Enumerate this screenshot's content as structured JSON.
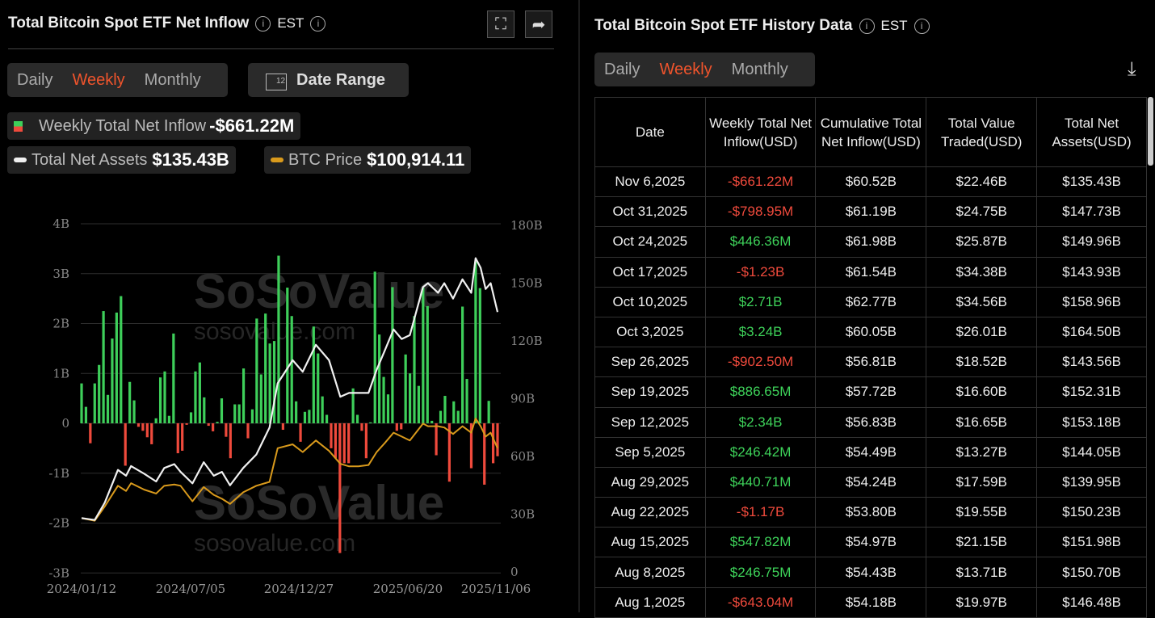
{
  "left": {
    "title": "Total Bitcoin Spot ETF Net Inflow",
    "tz": "EST",
    "periods": [
      "Daily",
      "Weekly",
      "Monthly"
    ],
    "active_period": "Weekly",
    "date_range_label": "Date Range",
    "calendar_day": "12",
    "legend": {
      "inflow_label": "Weekly Total Net Inflow",
      "inflow_value": "-$661.22M",
      "assets_label": "Total Net Assets",
      "assets_value": "$135.43B",
      "btc_label": "BTC Price",
      "btc_value": "$100,914.11"
    }
  },
  "watermark": {
    "brand": "SoSoValue",
    "url": "sosovalue.com"
  },
  "chart_data": {
    "type": "bar+line",
    "colors": {
      "positive": "#3ecf5a",
      "negative": "#ef4a3c",
      "total_net_assets": "#f0f0f0",
      "btc_price": "#d99a1c"
    },
    "x_ticks": [
      "2024/01/12",
      "2024/07/05",
      "2024/12/27",
      "2025/06/20",
      "2025/11/06"
    ],
    "x_range": [
      "2024-01-12",
      "2025-11-06"
    ],
    "left_axis": {
      "ticks": [
        "4B",
        "3B",
        "2B",
        "1B",
        "0",
        "-1B",
        "-2B",
        "-3B"
      ],
      "range": [
        -3,
        4
      ],
      "unit": "B"
    },
    "right_axis": {
      "ticks": [
        "180B",
        "150B",
        "120B",
        "90B",
        "60B",
        "30B",
        "0"
      ],
      "range": [
        0,
        180
      ],
      "unit": "B"
    },
    "grid": true,
    "weekly_net_inflow_B": [
      0.8,
      0.33,
      -0.4,
      0.8,
      1.17,
      2.25,
      0.57,
      1.7,
      2.22,
      2.55,
      -0.85,
      0.83,
      0.46,
      -0.07,
      -0.15,
      -0.28,
      -0.42,
      0.1,
      0.92,
      1.04,
      0.15,
      1.8,
      -0.6,
      -0.55,
      -0.03,
      0.22,
      1.04,
      1.22,
      0.52,
      -0.05,
      -0.16,
      0.03,
      0.5,
      -0.27,
      -0.7,
      0.38,
      0.38,
      1.1,
      -0.3,
      0.28,
      2.1,
      0.98,
      2.2,
      1.6,
      1.65,
      3.36,
      -0.13,
      2.72,
      2.15,
      0.44,
      -0.37,
      0.23,
      0.27,
      1.94,
      1.4,
      0.54,
      0.17,
      -0.5,
      -0.7,
      -2.6,
      -0.8,
      -0.8,
      0.7,
      0.17,
      -0.15,
      -0.7,
      0.02,
      3.04,
      1.78,
      0.93,
      0.58,
      2.73,
      -0.15,
      -0.12,
      1.38,
      1.0,
      2.15,
      0.75,
      2.72,
      2.35,
      0.05,
      -0.64,
      0.25,
      0.55,
      -1.17,
      0.44,
      0.25,
      2.34,
      0.89,
      -0.9,
      3.24,
      2.71,
      -1.23,
      0.45,
      -0.8,
      -0.66
    ],
    "line_dates": [
      "2024-01-12",
      "2024-02-02",
      "2024-02-18",
      "2024-03-10",
      "2024-03-23",
      "2024-03-31",
      "2024-04-21",
      "2024-05-10",
      "2024-05-23",
      "2024-06-08",
      "2024-06-18",
      "2024-07-07",
      "2024-07-25",
      "2024-08-10",
      "2024-08-23",
      "2024-09-05",
      "2024-09-26",
      "2024-10-17",
      "2024-11-07",
      "2024-11-20",
      "2024-12-14",
      "2024-12-30",
      "2025-01-20",
      "2025-02-10",
      "2025-02-28",
      "2025-03-14",
      "2025-03-29",
      "2025-04-14",
      "2025-04-27",
      "2025-05-10",
      "2025-05-24",
      "2025-06-06",
      "2025-06-19",
      "2025-07-10",
      "2025-07-18",
      "2025-08-03",
      "2025-08-13",
      "2025-08-27",
      "2025-09-11",
      "2025-09-25",
      "2025-10-02",
      "2025-10-10",
      "2025-10-18",
      "2025-10-26",
      "2025-11-06"
    ],
    "total_net_assets_B": [
      28,
      27,
      36,
      53,
      50,
      55,
      51,
      47,
      54,
      56,
      52,
      46,
      57,
      50,
      52,
      45,
      54,
      61,
      75,
      98,
      110,
      104,
      118,
      110,
      91,
      93,
      93,
      93,
      105,
      115,
      126,
      121,
      123,
      148,
      150,
      145,
      150,
      142,
      152,
      145,
      163,
      158,
      147,
      150,
      135
    ],
    "btc_price_usd": [
      47000,
      45000,
      56000,
      72000,
      68000,
      74000,
      69000,
      66000,
      72000,
      73000,
      72000,
      60000,
      71000,
      65000,
      62000,
      58000,
      67000,
      72000,
      75000,
      101000,
      104000,
      98000,
      107000,
      99000,
      89000,
      87000,
      87000,
      88000,
      98000,
      105000,
      113000,
      110000,
      107000,
      120000,
      118000,
      118000,
      117000,
      112000,
      118000,
      113000,
      124000,
      118000,
      110000,
      113000,
      101000
    ]
  },
  "right": {
    "title": "Total Bitcoin Spot ETF History Data",
    "tz": "EST",
    "periods": [
      "Daily",
      "Weekly",
      "Monthly"
    ],
    "active_period": "Weekly",
    "columns": [
      "Date",
      "Weekly Total Net Inflow(USD)",
      "Cumulative Total Net Inflow(USD)",
      "Total Value Traded(USD)",
      "Total Net Assets(USD)"
    ],
    "rows": [
      [
        "Nov 6,2025",
        "-$661.22M",
        "$60.52B",
        "$22.46B",
        "$135.43B"
      ],
      [
        "Oct 31,2025",
        "-$798.95M",
        "$61.19B",
        "$24.75B",
        "$147.73B"
      ],
      [
        "Oct 24,2025",
        "$446.36M",
        "$61.98B",
        "$25.87B",
        "$149.96B"
      ],
      [
        "Oct 17,2025",
        "-$1.23B",
        "$61.54B",
        "$34.38B",
        "$143.93B"
      ],
      [
        "Oct 10,2025",
        "$2.71B",
        "$62.77B",
        "$34.56B",
        "$158.96B"
      ],
      [
        "Oct 3,2025",
        "$3.24B",
        "$60.05B",
        "$26.01B",
        "$164.50B"
      ],
      [
        "Sep 26,2025",
        "-$902.50M",
        "$56.81B",
        "$18.52B",
        "$143.56B"
      ],
      [
        "Sep 19,2025",
        "$886.65M",
        "$57.72B",
        "$16.60B",
        "$152.31B"
      ],
      [
        "Sep 12,2025",
        "$2.34B",
        "$56.83B",
        "$16.65B",
        "$153.18B"
      ],
      [
        "Sep 5,2025",
        "$246.42M",
        "$54.49B",
        "$13.27B",
        "$144.05B"
      ],
      [
        "Aug 29,2025",
        "$440.71M",
        "$54.24B",
        "$17.59B",
        "$139.95B"
      ],
      [
        "Aug 22,2025",
        "-$1.17B",
        "$53.80B",
        "$19.55B",
        "$150.23B"
      ],
      [
        "Aug 15,2025",
        "$547.82M",
        "$54.97B",
        "$21.15B",
        "$151.98B"
      ],
      [
        "Aug 8,2025",
        "$246.75M",
        "$54.43B",
        "$13.71B",
        "$150.70B"
      ],
      [
        "Aug 1,2025",
        "-$643.04M",
        "$54.18B",
        "$19.97B",
        "$146.48B"
      ]
    ]
  }
}
